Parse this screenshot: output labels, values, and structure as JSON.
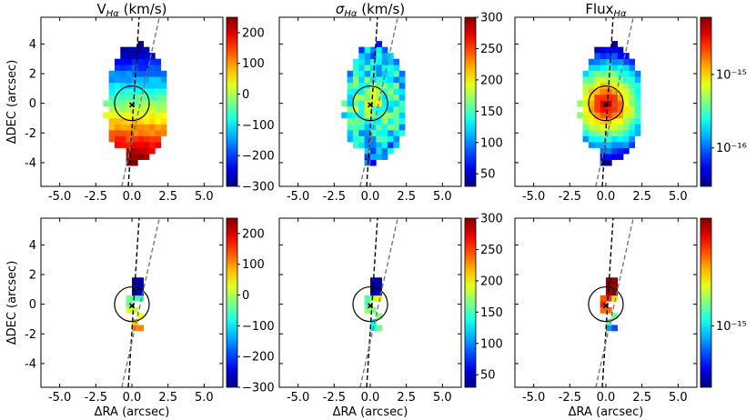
{
  "chart_data": {
    "type": "heatmap",
    "layout": "2x3 grid of kinematic maps",
    "xlabel": "ΔRA (arcsec)",
    "ylabel": "ΔDEC (arcsec)",
    "xlim": [
      -6.3,
      6.3
    ],
    "ylim": [
      -5.6,
      5.8
    ],
    "xticks": [
      "-5.0",
      "-2.5",
      "0.0",
      "2.5",
      "5.0"
    ],
    "xtick_values": [
      -5,
      -2.5,
      0,
      2.5,
      5
    ],
    "yticks": [
      "4",
      "2",
      "0",
      "-2",
      "-4"
    ],
    "ytick_values": [
      4,
      2,
      0,
      -2,
      -4
    ],
    "colormap": "jet",
    "circle": {
      "center": [
        0,
        0
      ],
      "radius": 1.2
    },
    "center_marker": [
      0,
      -0.1
    ],
    "lines": [
      {
        "style": "dashed-black",
        "x_at_bottom": -0.25,
        "x_at_top": 0.5
      },
      {
        "style": "dashed-gray",
        "x_at_bottom": -0.7,
        "x_at_top": 1.9
      }
    ],
    "panels": [
      {
        "id": "velocity-top",
        "title": "V_Hα (km/s)",
        "row": 0,
        "col": 0,
        "colorbar": {
          "scale": "linear",
          "min": -300,
          "max": 250,
          "ticks": [
            {
              "v": 200,
              "label": "200"
            },
            {
              "v": 100,
              "label": "100"
            },
            {
              "v": 0,
              "label": "0"
            },
            {
              "v": -100,
              "label": "−100"
            },
            {
              "v": -200,
              "label": "−200"
            },
            {
              "v": -300,
              "label": "−300"
            }
          ]
        }
      },
      {
        "id": "dispersion-top",
        "title": "σ_Hα (km/s)",
        "row": 0,
        "col": 1,
        "colorbar": {
          "scale": "linear",
          "min": 30,
          "max": 300,
          "ticks": [
            {
              "v": 300,
              "label": "300"
            },
            {
              "v": 250,
              "label": "250"
            },
            {
              "v": 200,
              "label": "200"
            },
            {
              "v": 150,
              "label": "150"
            },
            {
              "v": 100,
              "label": "100"
            },
            {
              "v": 50,
              "label": "50"
            }
          ]
        }
      },
      {
        "id": "flux-top",
        "title": "Flux_Hα",
        "row": 0,
        "col": 2,
        "colorbar": {
          "scale": "log",
          "min": 3e-17,
          "max": 6e-15,
          "ticks": [
            {
              "v": 1e-15,
              "label": "10⁻¹⁵"
            },
            {
              "v": 1e-16,
              "label": "10⁻¹⁶"
            }
          ]
        }
      },
      {
        "id": "velocity-bottom",
        "title": "",
        "row": 1,
        "col": 0,
        "colorbar": {
          "scale": "linear",
          "min": -300,
          "max": 250,
          "ticks": [
            {
              "v": 200,
              "label": "200"
            },
            {
              "v": 100,
              "label": "100"
            },
            {
              "v": 0,
              "label": "0"
            },
            {
              "v": -100,
              "label": "−100"
            },
            {
              "v": -200,
              "label": "−200"
            },
            {
              "v": -300,
              "label": "−300"
            }
          ]
        }
      },
      {
        "id": "dispersion-bottom",
        "title": "",
        "row": 1,
        "col": 1,
        "colorbar": {
          "scale": "linear",
          "min": 30,
          "max": 300,
          "ticks": [
            {
              "v": 300,
              "label": "300"
            },
            {
              "v": 250,
              "label": "250"
            },
            {
              "v": 200,
              "label": "200"
            },
            {
              "v": 150,
              "label": "150"
            },
            {
              "v": 100,
              "label": "100"
            },
            {
              "v": 50,
              "label": "50"
            }
          ]
        }
      },
      {
        "id": "flux-bottom",
        "title": "",
        "row": 1,
        "col": 2,
        "colorbar": {
          "scale": "log",
          "min": 4e-16,
          "max": 5e-15,
          "ticks": [
            {
              "v": 1e-15,
              "label": "10⁻¹⁵"
            }
          ]
        }
      }
    ]
  }
}
